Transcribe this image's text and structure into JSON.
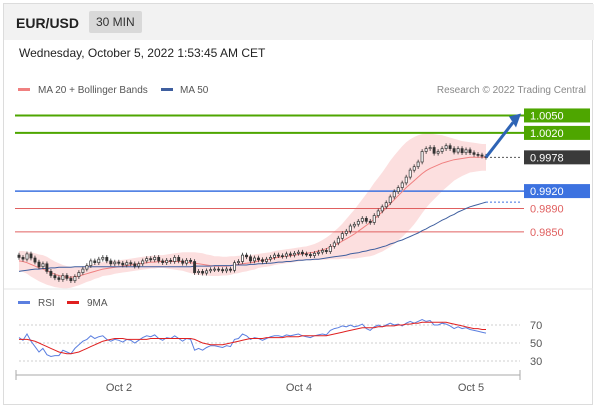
{
  "header": {
    "pair": "EUR/USD",
    "timeframe": "30 MIN"
  },
  "timestamp": "Wednesday, October 5, 2022 1:53:45 AM CET",
  "colors": {
    "green": "#4ea600",
    "blue": "#3c72e0",
    "red": "#e06060",
    "dark": "#3a3a3a",
    "ma50": "#3f5f9f",
    "bb": "#f08080",
    "band": "#fcdcdc",
    "rsi": "#5b7fe0",
    "ma9": "#e02020"
  },
  "chart_data": [
    {
      "type": "line",
      "legend": [
        "MA 20 + Bollinger Bands",
        "MA 50"
      ],
      "credit": "Research © 2022 Trading Central",
      "x_ticks": [
        "Oct 2",
        "Oct 4",
        "Oct 5"
      ],
      "levels": [
        {
          "value": 1.005,
          "label": "1.0050",
          "kind": "resistance"
        },
        {
          "value": 1.002,
          "label": "1.0020",
          "kind": "resistance"
        },
        {
          "value": 0.9978,
          "label": "0.9978",
          "kind": "last"
        },
        {
          "value": 0.992,
          "label": "0.9920",
          "kind": "pivot"
        },
        {
          "value": 0.989,
          "label": "0.9890",
          "kind": "support"
        },
        {
          "value": 0.985,
          "label": "0.9850",
          "kind": "support"
        }
      ],
      "close": [
        0.9806,
        0.9803,
        0.9812,
        0.9805,
        0.9798,
        0.979,
        0.9795,
        0.9782,
        0.9775,
        0.9771,
        0.9768,
        0.9775,
        0.977,
        0.9766,
        0.9773,
        0.978,
        0.9786,
        0.9792,
        0.98,
        0.9797,
        0.9803,
        0.9806,
        0.98,
        0.9795,
        0.9798,
        0.9796,
        0.9793,
        0.9797,
        0.9795,
        0.9791,
        0.9795,
        0.98,
        0.9804,
        0.9802,
        0.9806,
        0.98,
        0.9797,
        0.9801,
        0.9799,
        0.9806,
        0.98,
        0.9796,
        0.9801,
        0.9799,
        0.978,
        0.9782,
        0.9779,
        0.9783,
        0.9785,
        0.9786,
        0.9785,
        0.9783,
        0.9786,
        0.9784,
        0.9797,
        0.9799,
        0.981,
        0.9807,
        0.98,
        0.9805,
        0.9802,
        0.9799,
        0.9803,
        0.9806,
        0.981,
        0.9809,
        0.9808,
        0.9812,
        0.981,
        0.9813,
        0.9815,
        0.9812,
        0.9811,
        0.9809,
        0.9813,
        0.9815,
        0.9818,
        0.9816,
        0.9825,
        0.9831,
        0.9839,
        0.9847,
        0.9851,
        0.986,
        0.9863,
        0.9868,
        0.9873,
        0.9868,
        0.9866,
        0.9878,
        0.9886,
        0.9893,
        0.99,
        0.991,
        0.9919,
        0.9926,
        0.9934,
        0.9944,
        0.9956,
        0.9962,
        0.997,
        0.9988,
        0.9993,
        0.9995,
        0.9985,
        0.9988,
        0.9993,
        0.9998,
        0.9993,
        0.9987,
        0.9993,
        0.9986,
        0.9991,
        0.9986,
        0.9983,
        0.9982,
        0.998,
        0.9978
      ],
      "ma20": [
        0.98,
        0.9799,
        0.9797,
        0.9794,
        0.9791,
        0.9788,
        0.9786,
        0.9783,
        0.978,
        0.9777,
        0.9775,
        0.9773,
        0.9772,
        0.9772,
        0.9773,
        0.9774,
        0.9776,
        0.9778,
        0.978,
        0.9782,
        0.9784,
        0.9786,
        0.9787,
        0.9788,
        0.9789,
        0.979,
        0.9791,
        0.9792,
        0.9793,
        0.9794,
        0.9795,
        0.9796,
        0.9797,
        0.9798,
        0.9798,
        0.9799,
        0.9799,
        0.9799,
        0.9799,
        0.9799,
        0.9799,
        0.9799,
        0.9798,
        0.9797,
        0.9796,
        0.9795,
        0.9794,
        0.9793,
        0.9792,
        0.9791,
        0.9791,
        0.9791,
        0.9791,
        0.9792,
        0.9793,
        0.9794,
        0.9795,
        0.9796,
        0.9797,
        0.9798,
        0.98,
        0.9801,
        0.9802,
        0.9803,
        0.9805,
        0.9806,
        0.9807,
        0.9808,
        0.9809,
        0.981,
        0.9811,
        0.9812,
        0.9813,
        0.9814,
        0.9815,
        0.9817,
        0.9819,
        0.9821,
        0.9824,
        0.9827,
        0.983,
        0.9834,
        0.9838,
        0.9842,
        0.9846,
        0.9851,
        0.9856,
        0.9861,
        0.9866,
        0.9872,
        0.9878,
        0.9884,
        0.9891,
        0.9898,
        0.9905,
        0.9912,
        0.9919,
        0.9926,
        0.9932,
        0.9938,
        0.9944,
        0.995,
        0.9955,
        0.9959,
        0.9962,
        0.9965,
        0.9968,
        0.997,
        0.9972,
        0.9974,
        0.9975,
        0.9976,
        0.9977,
        0.9978,
        0.9978,
        0.9978,
        0.9978,
        0.9978
      ],
      "bb_width": [
        0.0017,
        0.0018,
        0.0019,
        0.0021,
        0.0022,
        0.0023,
        0.0024,
        0.0024,
        0.0023,
        0.0022,
        0.0021,
        0.002,
        0.0019,
        0.0018,
        0.0017,
        0.0016,
        0.0015,
        0.0014,
        0.0014,
        0.0013,
        0.0013,
        0.0012,
        0.0012,
        0.0012,
        0.0011,
        0.0011,
        0.0011,
        0.0011,
        0.0011,
        0.0011,
        0.0011,
        0.0011,
        0.0011,
        0.0011,
        0.0011,
        0.0011,
        0.0011,
        0.0012,
        0.0013,
        0.0014,
        0.0015,
        0.0016,
        0.0017,
        0.0018,
        0.0019,
        0.0019,
        0.0019,
        0.0018,
        0.0018,
        0.0017,
        0.0017,
        0.0016,
        0.0016,
        0.0016,
        0.0015,
        0.0015,
        0.0014,
        0.0014,
        0.0013,
        0.0013,
        0.0012,
        0.0012,
        0.0012,
        0.0012,
        0.0012,
        0.0012,
        0.0012,
        0.0012,
        0.0012,
        0.0012,
        0.0012,
        0.0012,
        0.0012,
        0.0013,
        0.0014,
        0.0015,
        0.0017,
        0.0019,
        0.0021,
        0.0024,
        0.0027,
        0.003,
        0.0034,
        0.0038,
        0.0042,
        0.0046,
        0.005,
        0.0054,
        0.0058,
        0.0062,
        0.0065,
        0.0068,
        0.0071,
        0.0074,
        0.0076,
        0.0077,
        0.0078,
        0.0078,
        0.0077,
        0.0075,
        0.0072,
        0.0068,
        0.0064,
        0.006,
        0.0056,
        0.0052,
        0.0048,
        0.0044,
        0.004,
        0.0036,
        0.0033,
        0.003,
        0.0028,
        0.0026,
        0.0025,
        0.0024,
        0.0023,
        0.0023
      ],
      "ma50": [
        0.9782,
        0.9783,
        0.9784,
        0.9785,
        0.9786,
        0.9786,
        0.9787,
        0.9787,
        0.9788,
        0.9788,
        0.9789,
        0.9789,
        0.9789,
        0.9789,
        0.979,
        0.979,
        0.979,
        0.979,
        0.979,
        0.979,
        0.979,
        0.979,
        0.979,
        0.979,
        0.979,
        0.979,
        0.979,
        0.979,
        0.979,
        0.979,
        0.979,
        0.979,
        0.979,
        0.979,
        0.979,
        0.979,
        0.979,
        0.979,
        0.979,
        0.979,
        0.979,
        0.979,
        0.979,
        0.979,
        0.9791,
        0.9791,
        0.9791,
        0.9791,
        0.9791,
        0.9792,
        0.9792,
        0.9792,
        0.9792,
        0.9792,
        0.9793,
        0.9793,
        0.9793,
        0.9793,
        0.9794,
        0.9794,
        0.9795,
        0.9795,
        0.9796,
        0.9796,
        0.9797,
        0.9798,
        0.9798,
        0.9799,
        0.9799,
        0.98,
        0.9801,
        0.9801,
        0.9802,
        0.9802,
        0.9803,
        0.9803,
        0.9804,
        0.9805,
        0.9806,
        0.9807,
        0.9808,
        0.9809,
        0.981,
        0.9812,
        0.9813,
        0.9814,
        0.9816,
        0.9817,
        0.9819,
        0.982,
        0.9822,
        0.9824,
        0.9826,
        0.9829,
        0.9831,
        0.9834,
        0.9836,
        0.9839,
        0.9842,
        0.9845,
        0.9848,
        0.9852,
        0.9855,
        0.9859,
        0.9862,
        0.9866,
        0.987,
        0.9873,
        0.9877,
        0.988,
        0.9884,
        0.9887,
        0.989,
        0.9893,
        0.9895,
        0.9897,
        0.9899,
        0.9901
      ],
      "forecast": {
        "from": 0.9978,
        "to": 1.005
      }
    },
    {
      "type": "line",
      "legend": [
        "RSI",
        "9MA"
      ],
      "y_ticks": [
        70,
        50,
        30
      ],
      "ylim": [
        20,
        80
      ],
      "rsi": [
        56,
        53,
        60,
        52,
        46,
        40,
        44,
        37,
        35,
        36,
        36,
        42,
        40,
        38,
        44,
        48,
        52,
        54,
        58,
        55,
        57,
        58,
        54,
        52,
        54,
        53,
        51,
        54,
        53,
        50,
        53,
        56,
        58,
        57,
        59,
        55,
        53,
        56,
        55,
        58,
        55,
        52,
        55,
        54,
        42,
        44,
        42,
        45,
        47,
        47,
        46,
        45,
        47,
        46,
        54,
        55,
        60,
        58,
        54,
        56,
        55,
        53,
        55,
        57,
        58,
        58,
        57,
        59,
        58,
        59,
        60,
        58,
        57,
        56,
        58,
        59,
        60,
        59,
        64,
        66,
        67,
        69,
        68,
        70,
        68,
        69,
        71,
        66,
        64,
        68,
        70,
        68,
        70,
        72,
        70,
        71,
        69,
        72,
        74,
        72,
        74,
        76,
        74,
        75,
        70,
        70,
        72,
        71,
        69,
        66,
        68,
        66,
        67,
        65,
        64,
        63,
        62,
        61
      ],
      "ma9": [
        54,
        54,
        54,
        53,
        52,
        50,
        48,
        46,
        44,
        42,
        40,
        39,
        38,
        38,
        39,
        40,
        42,
        44,
        46,
        48,
        50,
        52,
        53,
        54,
        55,
        55,
        55,
        54,
        54,
        54,
        54,
        54,
        54,
        55,
        55,
        55,
        55,
        55,
        55,
        55,
        55,
        55,
        55,
        55,
        54,
        52,
        50,
        49,
        48,
        48,
        48,
        48,
        49,
        50,
        51,
        52,
        53,
        54,
        55,
        55,
        55,
        55,
        56,
        56,
        56,
        56,
        56,
        57,
        57,
        57,
        57,
        58,
        58,
        58,
        58,
        58,
        58,
        58,
        59,
        60,
        61,
        62,
        63,
        64,
        65,
        66,
        67,
        67,
        67,
        67,
        68,
        68,
        69,
        69,
        69,
        70,
        70,
        71,
        71,
        72,
        72,
        73,
        73,
        73,
        73,
        73,
        73,
        73,
        72,
        71,
        70,
        69,
        68,
        67,
        66,
        66,
        65,
        65
      ]
    }
  ]
}
